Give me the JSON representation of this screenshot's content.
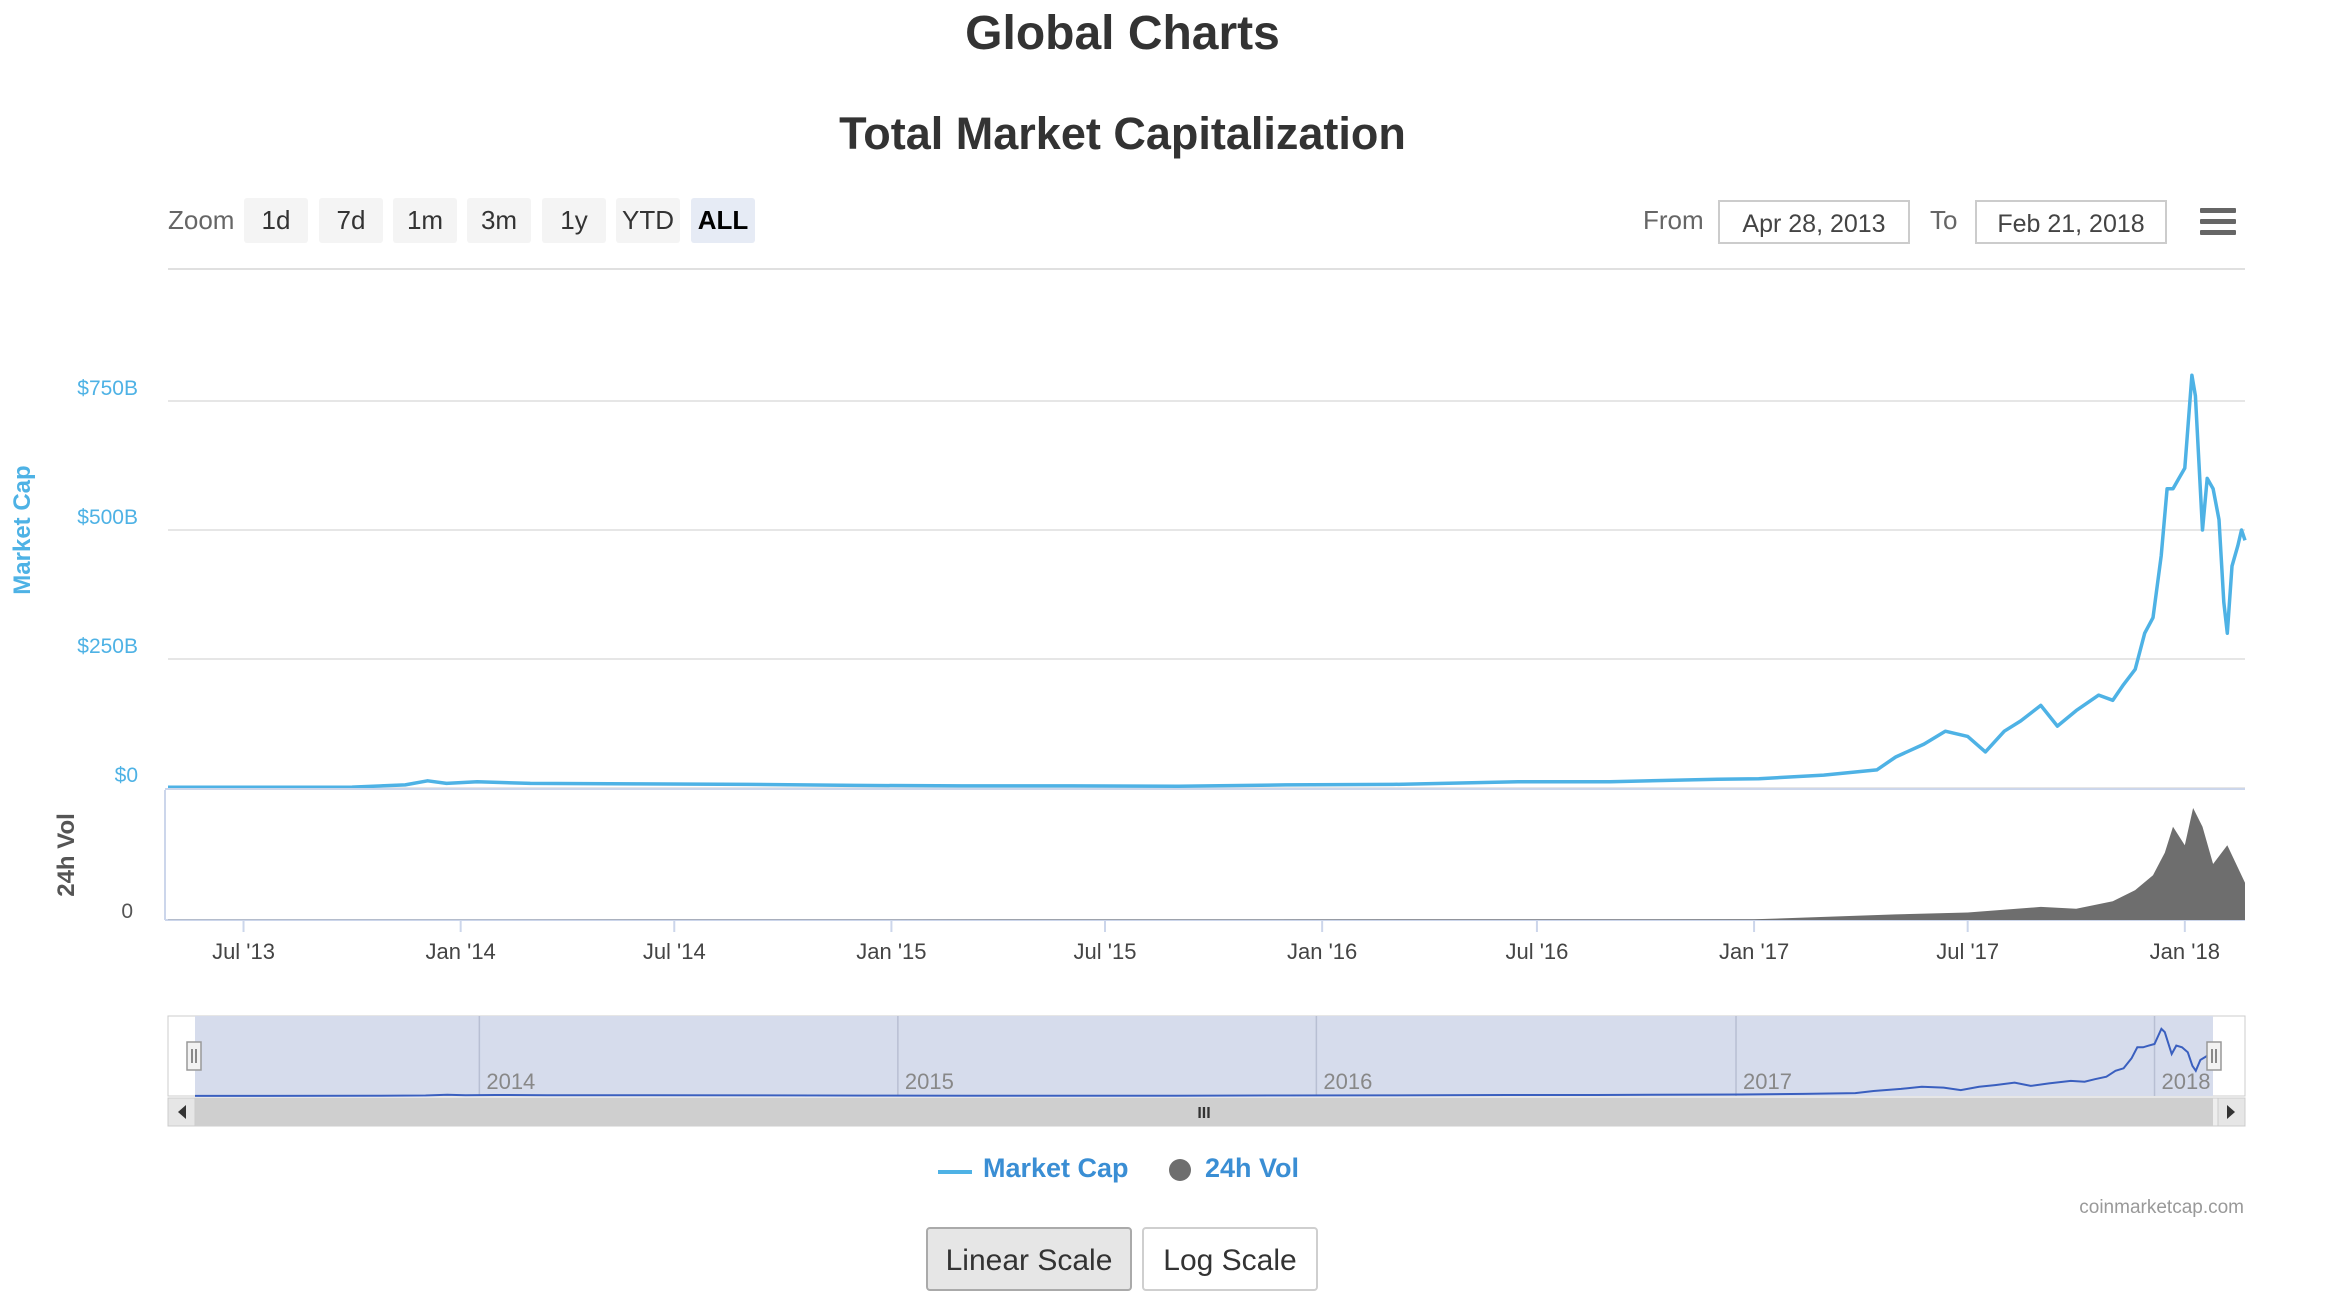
{
  "page": {
    "title": "Global Charts"
  },
  "chart_title": "Total Market Capitalization",
  "zoom": {
    "label": "Zoom",
    "buttons": [
      "1d",
      "7d",
      "1m",
      "3m",
      "1y",
      "YTD",
      "ALL"
    ],
    "active": "ALL"
  },
  "range": {
    "from_label": "From",
    "from_value": "Apr 28, 2013",
    "to_label": "To",
    "to_value": "Feb 21, 2018"
  },
  "menu_icon": "hamburger-menu-icon",
  "colors": {
    "market_cap": "#4eb2e5",
    "volume": "#6e6e6e",
    "navigator_fill": "#d6dcec",
    "legend_text": "#3a8ed4"
  },
  "chart_data": {
    "type": "line",
    "x_range": [
      "2013-04-28",
      "2018-02-21"
    ],
    "x_tick_labels": [
      "Jul '13",
      "Jan '14",
      "Jul '14",
      "Jan '15",
      "Jul '15",
      "Jan '16",
      "Jul '16",
      "Jan '17",
      "Jul '17",
      "Jan '18"
    ],
    "market_cap": {
      "ylabel": "Market Cap",
      "y_tick_labels": [
        "$0",
        "$250B",
        "$500B",
        "$750B"
      ],
      "y_ticks": [
        0,
        250,
        500,
        750
      ],
      "unit": "USD billions",
      "ylim": [
        0,
        750
      ],
      "x": [
        "2013-04-28",
        "2013-07-01",
        "2013-10-01",
        "2013-11-15",
        "2013-12-04",
        "2013-12-20",
        "2014-01-15",
        "2014-03-01",
        "2014-06-01",
        "2014-09-01",
        "2014-12-01",
        "2015-03-01",
        "2015-06-01",
        "2015-09-01",
        "2015-12-01",
        "2016-03-01",
        "2016-06-15",
        "2016-09-01",
        "2016-12-01",
        "2017-01-05",
        "2017-03-01",
        "2017-04-15",
        "2017-05-01",
        "2017-05-25",
        "2017-06-12",
        "2017-07-01",
        "2017-07-16",
        "2017-08-01",
        "2017-08-15",
        "2017-09-01",
        "2017-09-15",
        "2017-10-01",
        "2017-10-20",
        "2017-11-01",
        "2017-11-10",
        "2017-11-20",
        "2017-11-28",
        "2017-12-05",
        "2017-12-12",
        "2017-12-17",
        "2017-12-22",
        "2017-12-27",
        "2018-01-01",
        "2018-01-07",
        "2018-01-10",
        "2018-01-16",
        "2018-01-20",
        "2018-01-25",
        "2018-01-30",
        "2018-02-03",
        "2018-02-06",
        "2018-02-10",
        "2018-02-15",
        "2018-02-18",
        "2018-02-21"
      ],
      "y": [
        1.5,
        1.3,
        1.8,
        6,
        14,
        9,
        12,
        9,
        8,
        7,
        5,
        4,
        4,
        3.5,
        6,
        7,
        12,
        12,
        17,
        18,
        25,
        35,
        60,
        85,
        110,
        100,
        70,
        110,
        130,
        160,
        120,
        150,
        180,
        170,
        200,
        230,
        300,
        330,
        450,
        580,
        580,
        600,
        620,
        800,
        760,
        500,
        600,
        580,
        520,
        360,
        300,
        430,
        470,
        500,
        480
      ]
    },
    "volume": {
      "ylabel": "24h Vol",
      "y_tick_labels": [
        "0"
      ],
      "unit": "USD billions",
      "x": [
        "2013-04-28",
        "2017-01-01",
        "2017-05-01",
        "2017-07-01",
        "2017-09-01",
        "2017-10-01",
        "2017-11-01",
        "2017-11-20",
        "2017-12-05",
        "2017-12-15",
        "2017-12-22",
        "2018-01-01",
        "2018-01-08",
        "2018-01-16",
        "2018-01-25",
        "2018-02-06",
        "2018-02-21"
      ],
      "y": [
        0.05,
        0.2,
        1.5,
        2,
        3.5,
        3,
        5,
        8,
        12,
        18,
        25,
        20,
        30,
        25,
        15,
        20,
        10
      ]
    },
    "navigator": {
      "year_labels": [
        "2014",
        "2015",
        "2016",
        "2017",
        "2018"
      ],
      "scroll_thumb": "III"
    },
    "legend": [
      "Market Cap",
      "24h Vol"
    ],
    "legend_position": "bottom-center"
  },
  "credits": "coinmarketcap.com",
  "scale_buttons": {
    "linear": "Linear Scale",
    "log": "Log Scale",
    "active": "linear"
  }
}
